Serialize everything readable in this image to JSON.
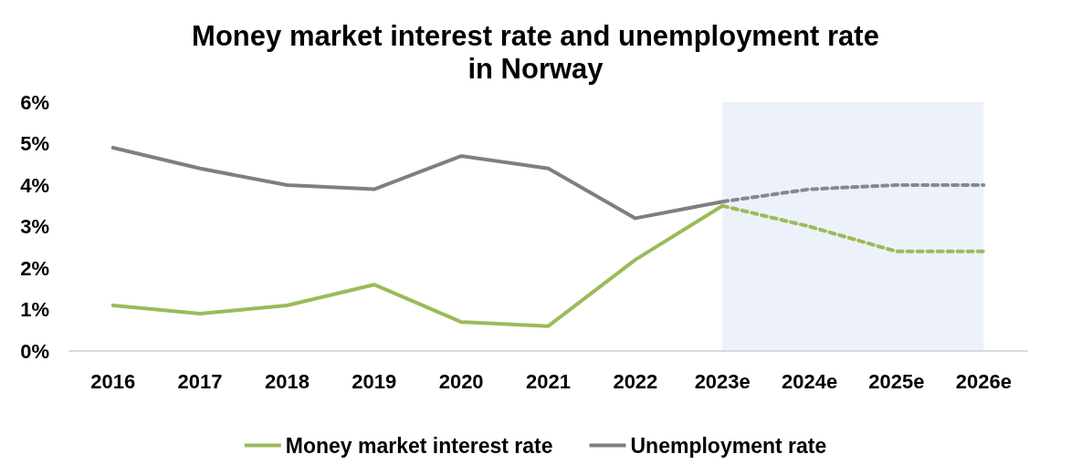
{
  "chart_data": {
    "type": "line",
    "title": "Money market interest rate and unemployment rate\nin Norway",
    "categories": [
      "2016",
      "2017",
      "2018",
      "2019",
      "2020",
      "2021",
      "2022",
      "2023e",
      "2024e",
      "2025e",
      "2026e"
    ],
    "series": [
      {
        "name": "Money market interest rate",
        "color": "#9bbb59",
        "line_style": "solid",
        "values": [
          1.1,
          0.9,
          1.1,
          1.6,
          0.7,
          0.6,
          2.2,
          3.5,
          null,
          null,
          null
        ]
      },
      {
        "name": "Unemployment rate",
        "color": "#7f7f7f",
        "line_style": "solid",
        "values": [
          4.9,
          4.4,
          4.0,
          3.9,
          4.7,
          4.4,
          3.2,
          3.6,
          null,
          null,
          null
        ]
      },
      {
        "color": "#9bbb59",
        "line_style": "dashed",
        "values": [
          null,
          null,
          null,
          null,
          null,
          null,
          null,
          3.5,
          3.0,
          2.4,
          2.4
        ]
      },
      {
        "color": "#848891",
        "line_style": "dashed",
        "values": [
          null,
          null,
          null,
          null,
          null,
          null,
          null,
          3.6,
          3.9,
          4.0,
          4.0
        ]
      }
    ],
    "ylim": [
      0,
      6
    ],
    "yticks": [
      {
        "value": 0,
        "label": "0%"
      },
      {
        "value": 1,
        "label": "1%"
      },
      {
        "value": 2,
        "label": "2%"
      },
      {
        "value": 3,
        "label": "3%"
      },
      {
        "value": 4,
        "label": "4%"
      },
      {
        "value": 5,
        "label": "5%"
      },
      {
        "value": 6,
        "label": "6%"
      }
    ],
    "bands": [
      {
        "axis": "x",
        "from": "2023e",
        "to": "2026e",
        "color": "#edf1f9"
      }
    ],
    "grid": false,
    "legend": "bottom",
    "marker": "none"
  }
}
